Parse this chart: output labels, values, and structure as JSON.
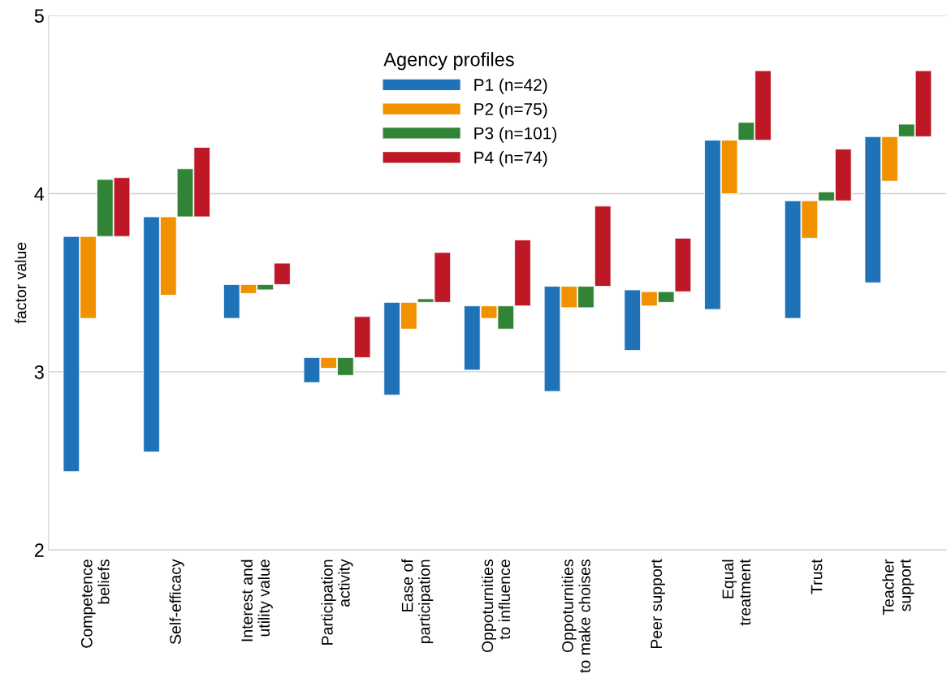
{
  "chart_data": {
    "type": "bar",
    "ylabel": "factor value",
    "legend_title": "Agency profiles",
    "legend": "top",
    "categories": [
      "Competence\nbeliefs",
      "Self-efficacy",
      "Interest and\nutility value",
      "Participation\nactivity",
      "Ease of\nparticipation",
      "Oppoturnities\nto influence",
      "Oppoturnities\nto make choises",
      "Peer support",
      "Equal\ntreatment",
      "Trust",
      "Teacher\nsupport"
    ],
    "series": [
      {
        "name": "P1 (n=42)",
        "color": "#1f72b8",
        "base": [
          2.44,
          2.55,
          3.3,
          2.94,
          2.87,
          3.01,
          2.89,
          3.12,
          3.35,
          3.3,
          3.5
        ],
        "values": [
          1.32,
          1.32,
          0.19,
          0.14,
          0.52,
          0.36,
          0.59,
          0.34,
          0.95,
          0.66,
          0.82
        ]
      },
      {
        "name": "P2 (n=75)",
        "color": "#f29100",
        "base": [
          3.3,
          3.43,
          3.44,
          3.02,
          3.24,
          3.3,
          3.36,
          3.37,
          4.0,
          3.75,
          4.07
        ],
        "values": [
          0.46,
          0.44,
          0.05,
          0.06,
          0.15,
          0.07,
          0.12,
          0.08,
          0.3,
          0.21,
          0.25
        ]
      },
      {
        "name": "P3 (n=101)",
        "color": "#318436",
        "base": [
          3.76,
          3.87,
          3.46,
          2.98,
          3.39,
          3.24,
          3.36,
          3.39,
          4.3,
          3.96,
          4.32
        ],
        "values": [
          0.32,
          0.27,
          0.03,
          0.1,
          0.02,
          0.13,
          0.12,
          0.06,
          0.1,
          0.05,
          0.07
        ]
      },
      {
        "name": "P4 (n=74)",
        "color": "#be1725",
        "base": [
          3.76,
          3.87,
          3.49,
          3.08,
          3.39,
          3.37,
          3.48,
          3.45,
          4.3,
          3.96,
          4.32
        ],
        "values": [
          0.33,
          0.39,
          0.12,
          0.23,
          0.28,
          0.37,
          0.45,
          0.3,
          0.39,
          0.29,
          0.37
        ]
      }
    ],
    "ylim": [
      2,
      5
    ],
    "yticks": [
      2,
      3,
      4,
      5
    ],
    "grid": "y"
  }
}
